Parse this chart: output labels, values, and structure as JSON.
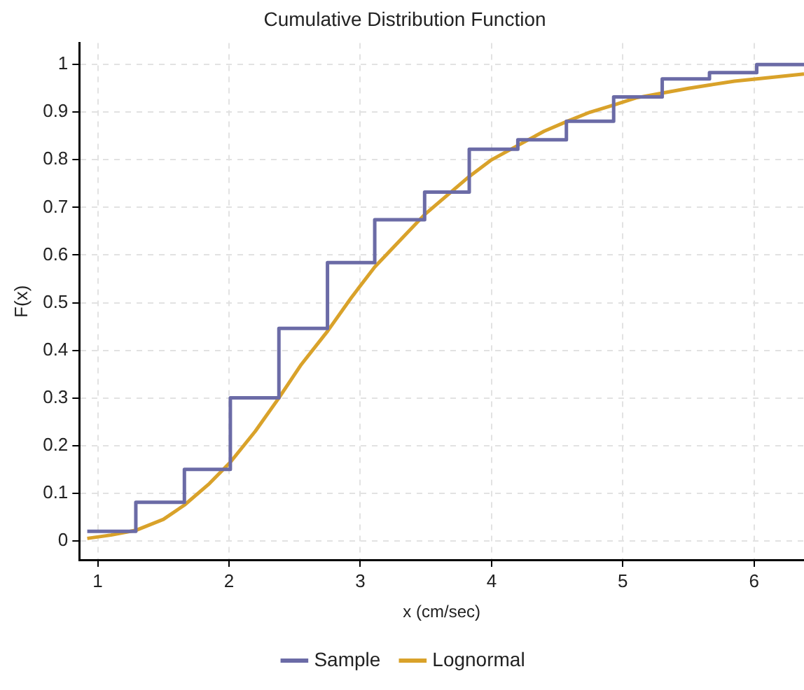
{
  "chart_data": {
    "type": "line",
    "title": "Cumulative Distribution Function",
    "xlabel": "x (cm/sec)",
    "ylabel": "F(x)",
    "xlim": [
      0.86,
      6.38
    ],
    "xticks": [
      1,
      2,
      3,
      4,
      5,
      6
    ],
    "ylim": [
      -0.04,
      1.045
    ],
    "yticks": [
      0,
      0.1,
      0.2,
      0.3,
      0.4,
      0.5,
      0.6,
      0.7,
      0.8,
      0.9,
      1
    ],
    "grid": true,
    "legend": "bottom",
    "marker": "none",
    "line_style": "solid",
    "series": [
      {
        "name": "Sample",
        "type": "step",
        "color": "#6b6ba6",
        "x": [
          0.92,
          1.29,
          1.66,
          2.01,
          2.38,
          2.75,
          3.11,
          3.49,
          3.83,
          4.2,
          4.57,
          4.93,
          5.3,
          5.66,
          6.02,
          6.38
        ],
        "values": [
          0.02,
          0.081,
          0.15,
          0.3,
          0.446,
          0.584,
          0.674,
          0.732,
          0.822,
          0.842,
          0.881,
          0.932,
          0.97,
          0.983,
          1,
          1
        ]
      },
      {
        "name": "Lognormal",
        "type": "line",
        "color": "#d9a22a",
        "x": [
          0.92,
          1.1,
          1.29,
          1.5,
          1.66,
          1.85,
          2.01,
          2.2,
          2.38,
          2.55,
          2.75,
          2.93,
          3.11,
          3.3,
          3.49,
          3.83,
          4.0,
          4.2,
          4.4,
          4.57,
          4.75,
          4.93,
          5.1,
          5.3,
          5.5,
          5.66,
          5.85,
          6.02,
          6.2,
          6.38
        ],
        "values": [
          0.005,
          0.012,
          0.022,
          0.045,
          0.075,
          0.12,
          0.165,
          0.23,
          0.3,
          0.37,
          0.44,
          0.51,
          0.575,
          0.63,
          0.685,
          0.765,
          0.8,
          0.83,
          0.86,
          0.88,
          0.9,
          0.915,
          0.93,
          0.94,
          0.95,
          0.957,
          0.965,
          0.97,
          0.975,
          0.98
        ]
      }
    ]
  }
}
